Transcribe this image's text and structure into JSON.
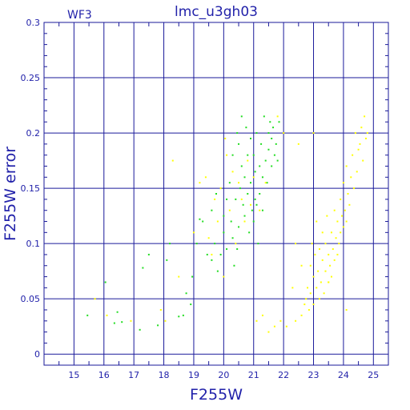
{
  "chart_data": {
    "type": "scatter",
    "title": "lmc_u3gh03",
    "annotation": "WF3",
    "xlabel": "F255W",
    "ylabel": "F255W error",
    "xlim": [
      14,
      25.5
    ],
    "ylim": [
      -0.01,
      0.3
    ],
    "grid": true,
    "xticks": [
      15,
      16,
      17,
      18,
      19,
      20,
      21,
      22,
      23,
      24,
      25
    ],
    "yticks": [
      0,
      0.05,
      0.1,
      0.15,
      0.2,
      0.25,
      0.3
    ],
    "ytick_labels": [
      "0",
      "0.05",
      "0.1",
      "0.15",
      "0.2",
      "0.25",
      "0.3"
    ],
    "colors": {
      "axes": "#1a1a9a",
      "grid": "#1a1a9a",
      "text": "#2222aa",
      "green": "#22dd22",
      "yellow": "#ffff00"
    },
    "series": [
      {
        "color": "green",
        "points": [
          [
            15.45,
            0.035
          ],
          [
            16.05,
            0.065
          ],
          [
            16.45,
            0.038
          ],
          [
            16.6,
            0.029
          ],
          [
            16.35,
            0.028
          ],
          [
            17.2,
            0.022
          ],
          [
            17.8,
            0.026
          ],
          [
            17.5,
            0.09
          ],
          [
            17.3,
            0.078
          ],
          [
            18.2,
            0.1
          ],
          [
            18.1,
            0.085
          ],
          [
            18.5,
            0.034
          ],
          [
            18.65,
            0.035
          ],
          [
            18.75,
            0.055
          ],
          [
            18.9,
            0.045
          ],
          [
            18.95,
            0.07
          ],
          [
            19.1,
            0.1
          ],
          [
            19.2,
            0.122
          ],
          [
            19.3,
            0.12
          ],
          [
            19.45,
            0.09
          ],
          [
            19.6,
            0.13
          ],
          [
            19.6,
            0.085
          ],
          [
            19.7,
            0.1
          ],
          [
            19.75,
            0.145
          ],
          [
            19.8,
            0.075
          ],
          [
            19.9,
            0.09
          ],
          [
            20.0,
            0.11
          ],
          [
            20.0,
            0.125
          ],
          [
            20.1,
            0.095
          ],
          [
            20.1,
            0.14
          ],
          [
            20.2,
            0.155
          ],
          [
            20.25,
            0.12
          ],
          [
            20.3,
            0.18
          ],
          [
            20.3,
            0.105
          ],
          [
            20.35,
            0.08
          ],
          [
            20.4,
            0.14
          ],
          [
            20.45,
            0.2
          ],
          [
            20.45,
            0.095
          ],
          [
            20.5,
            0.19
          ],
          [
            20.5,
            0.115
          ],
          [
            20.55,
            0.15
          ],
          [
            20.6,
            0.215
          ],
          [
            20.6,
            0.17
          ],
          [
            20.65,
            0.135
          ],
          [
            20.7,
            0.16
          ],
          [
            20.7,
            0.125
          ],
          [
            20.75,
            0.205
          ],
          [
            20.8,
            0.18
          ],
          [
            20.8,
            0.145
          ],
          [
            20.85,
            0.11
          ],
          [
            20.9,
            0.195
          ],
          [
            20.9,
            0.155
          ],
          [
            20.95,
            0.13
          ],
          [
            21.0,
            0.18
          ],
          [
            21.0,
            0.12
          ],
          [
            21.05,
            0.165
          ],
          [
            21.05,
            0.14
          ],
          [
            21.1,
            0.2
          ],
          [
            21.1,
            0.135
          ],
          [
            21.15,
            0.1
          ],
          [
            21.2,
            0.17
          ],
          [
            21.2,
            0.145
          ],
          [
            21.25,
            0.19
          ],
          [
            21.3,
            0.16
          ],
          [
            21.3,
            0.13
          ],
          [
            21.35,
            0.215
          ],
          [
            21.4,
            0.175
          ],
          [
            21.45,
            0.155
          ],
          [
            21.5,
            0.2
          ],
          [
            21.5,
            0.185
          ],
          [
            21.55,
            0.21
          ],
          [
            21.6,
            0.195
          ],
          [
            21.6,
            0.17
          ],
          [
            21.65,
            0.205
          ],
          [
            21.7,
            0.18
          ],
          [
            21.75,
            0.19
          ],
          [
            21.8,
            0.175
          ],
          [
            21.85,
            0.21
          ]
        ]
      },
      {
        "color": "yellow",
        "points": [
          [
            15.7,
            0.05
          ],
          [
            16.1,
            0.035
          ],
          [
            16.9,
            0.03
          ],
          [
            17.9,
            0.04
          ],
          [
            18.05,
            0.03
          ],
          [
            18.3,
            0.175
          ],
          [
            18.5,
            0.07
          ],
          [
            19.0,
            0.11
          ],
          [
            19.2,
            0.155
          ],
          [
            19.4,
            0.16
          ],
          [
            19.5,
            0.105
          ],
          [
            19.6,
            0.09
          ],
          [
            19.7,
            0.14
          ],
          [
            19.8,
            0.12
          ],
          [
            19.9,
            0.15
          ],
          [
            20.0,
            0.07
          ],
          [
            20.05,
            0.195
          ],
          [
            20.1,
            0.18
          ],
          [
            20.2,
            0.13
          ],
          [
            20.3,
            0.165
          ],
          [
            20.4,
            0.1
          ],
          [
            20.5,
            0.155
          ],
          [
            20.6,
            0.14
          ],
          [
            20.7,
            0.12
          ],
          [
            20.8,
            0.175
          ],
          [
            20.9,
            0.135
          ],
          [
            21.0,
            0.16
          ],
          [
            21.1,
            0.03
          ],
          [
            21.2,
            0.13
          ],
          [
            21.3,
            0.035
          ],
          [
            21.4,
            0.155
          ],
          [
            21.5,
            0.02
          ],
          [
            21.7,
            0.025
          ],
          [
            21.8,
            0.215
          ],
          [
            21.9,
            0.03
          ],
          [
            22.0,
            0.2
          ],
          [
            22.1,
            0.025
          ],
          [
            22.3,
            0.06
          ],
          [
            22.4,
            0.03
          ],
          [
            22.5,
            0.19
          ],
          [
            22.6,
            0.035
          ],
          [
            22.7,
            0.045
          ],
          [
            22.75,
            0.05
          ],
          [
            22.8,
            0.06
          ],
          [
            22.85,
            0.04
          ],
          [
            22.9,
            0.08
          ],
          [
            22.9,
            0.055
          ],
          [
            22.95,
            0.1
          ],
          [
            23.0,
            0.07
          ],
          [
            23.0,
            0.045
          ],
          [
            23.05,
            0.09
          ],
          [
            23.1,
            0.06
          ],
          [
            23.1,
            0.12
          ],
          [
            23.15,
            0.075
          ],
          [
            23.2,
            0.05
          ],
          [
            23.2,
            0.095
          ],
          [
            23.25,
            0.065
          ],
          [
            23.3,
            0.085
          ],
          [
            23.3,
            0.11
          ],
          [
            23.35,
            0.055
          ],
          [
            23.4,
            0.075
          ],
          [
            23.4,
            0.1
          ],
          [
            23.45,
            0.125
          ],
          [
            23.5,
            0.065
          ],
          [
            23.5,
            0.09
          ],
          [
            23.55,
            0.08
          ],
          [
            23.6,
            0.11
          ],
          [
            23.6,
            0.07
          ],
          [
            23.65,
            0.095
          ],
          [
            23.7,
            0.085
          ],
          [
            23.7,
            0.13
          ],
          [
            23.75,
            0.105
          ],
          [
            23.8,
            0.09
          ],
          [
            23.8,
            0.12
          ],
          [
            23.85,
            0.1
          ],
          [
            23.9,
            0.14
          ],
          [
            23.9,
            0.11
          ],
          [
            23.95,
            0.125
          ],
          [
            24.0,
            0.115
          ],
          [
            24.0,
            0.155
          ],
          [
            24.05,
            0.13
          ],
          [
            24.1,
            0.17
          ],
          [
            24.1,
            0.12
          ],
          [
            24.15,
            0.145
          ],
          [
            24.2,
            0.135
          ],
          [
            24.25,
            0.16
          ],
          [
            24.3,
            0.18
          ],
          [
            24.35,
            0.15
          ],
          [
            24.4,
            0.2
          ],
          [
            24.45,
            0.165
          ],
          [
            24.5,
            0.185
          ],
          [
            24.55,
            0.19
          ],
          [
            24.6,
            0.205
          ],
          [
            24.65,
            0.175
          ],
          [
            24.7,
            0.215
          ],
          [
            24.75,
            0.195
          ],
          [
            24.8,
            0.2
          ],
          [
            23.0,
            0.2
          ],
          [
            23.5,
            0.065
          ],
          [
            24.1,
            0.04
          ],
          [
            22.4,
            0.1
          ],
          [
            22.6,
            0.08
          ]
        ]
      }
    ]
  }
}
